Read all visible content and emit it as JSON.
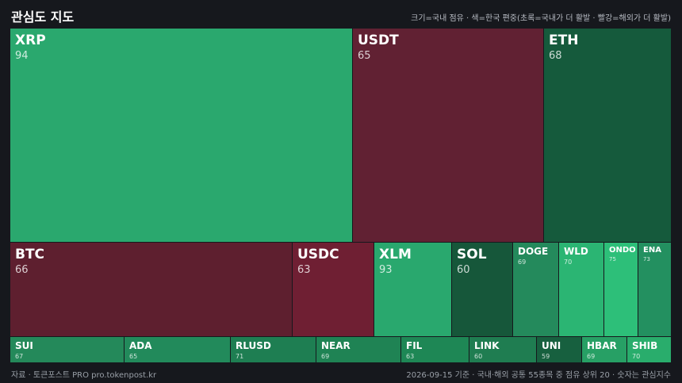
{
  "chart_data": {
    "type": "treemap",
    "title": "관심도 지도",
    "subtitle": "크기=국내 점유 · 색=한국 편중(초록=국내가 더 활발 · 빨강=해외가 더 활발)",
    "footer_left": "자료 · 토큰포스트 PRO  pro.tokenpost.kr",
    "footer_right": "2026-09-15 기준 · 국내·해외 공통 55종목 중 점유 상위 20 · 숫자는 관심지수",
    "items": [
      {
        "name": "XRP",
        "value": 94,
        "color": "#2aa86e"
      },
      {
        "name": "USDT",
        "value": 65,
        "color": "#612133"
      },
      {
        "name": "ETH",
        "value": 68,
        "color": "#155a3c"
      },
      {
        "name": "BTC",
        "value": 66,
        "color": "#5e1f2f"
      },
      {
        "name": "USDC",
        "value": 63,
        "color": "#6f1f33"
      },
      {
        "name": "XLM",
        "value": 93,
        "color": "#29a86e"
      },
      {
        "name": "SOL",
        "value": 60,
        "color": "#16573a"
      },
      {
        "name": "DOGE",
        "value": 69,
        "color": "#248a5c"
      },
      {
        "name": "WLD",
        "value": 70,
        "color": "#2bb573"
      },
      {
        "name": "ONDO",
        "value": 75,
        "color": "#2dbf79"
      },
      {
        "name": "ENA",
        "value": 73,
        "color": "#239060"
      },
      {
        "name": "SUI",
        "value": 67,
        "color": "#24895a"
      },
      {
        "name": "ADA",
        "value": 65,
        "color": "#228a5b"
      },
      {
        "name": "RLUSD",
        "value": 71,
        "color": "#1e7e52"
      },
      {
        "name": "NEAR",
        "value": 69,
        "color": "#1f8354"
      },
      {
        "name": "FIL",
        "value": 63,
        "color": "#1e8755"
      },
      {
        "name": "LINK",
        "value": 60,
        "color": "#1f7d51"
      },
      {
        "name": "UNI",
        "value": 59,
        "color": "#17603f"
      },
      {
        "name": "HBAR",
        "value": 69,
        "color": "#27a065"
      },
      {
        "name": "SHIB",
        "value": 70,
        "color": "#29ad6c"
      }
    ]
  }
}
